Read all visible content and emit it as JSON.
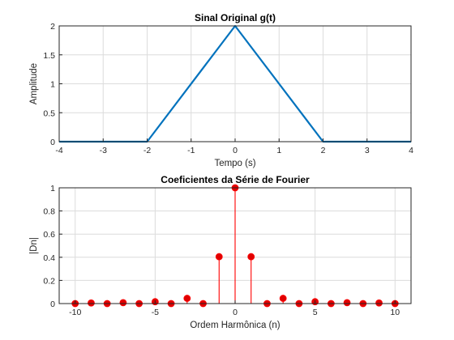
{
  "chart_data": [
    {
      "type": "line",
      "title": "Sinal Original g(t)",
      "xlabel": "Tempo (s)",
      "ylabel": "Amplitude",
      "xlim": [
        -4,
        4
      ],
      "ylim": [
        0,
        2
      ],
      "xticks": [
        -4,
        -3,
        -2,
        -1,
        0,
        1,
        2,
        3,
        4
      ],
      "yticks": [
        0,
        0.5,
        1,
        1.5,
        2
      ],
      "xtick_labels": [
        "-4",
        "-3",
        "-2",
        "-1",
        "0",
        "1",
        "2",
        "3",
        "4"
      ],
      "ytick_labels": [
        "0",
        "0.5",
        "1",
        "1.5",
        "2"
      ],
      "grid": true,
      "color": "#0072BD",
      "series": [
        {
          "x": [
            -4,
            -2,
            0,
            2,
            4
          ],
          "y": [
            0,
            0,
            2,
            0,
            0
          ]
        }
      ]
    },
    {
      "type": "stem",
      "title": "Coeficientes da Série de Fourier",
      "xlabel": "Ordem Harmônica (n)",
      "ylabel": "|Dn|",
      "xlim": [
        -11,
        11
      ],
      "ylim": [
        0,
        1
      ],
      "xticks": [
        -10,
        -5,
        0,
        5,
        10
      ],
      "yticks": [
        0,
        0.2,
        0.4,
        0.6,
        0.8,
        1
      ],
      "xtick_labels": [
        "-10",
        "-5",
        "0",
        "5",
        "10"
      ],
      "ytick_labels": [
        "0",
        "0.2",
        "0.4",
        "0.6",
        "0.8",
        "1"
      ],
      "grid": true,
      "color": "#FF0000",
      "marker_color": "#E00000",
      "series": [
        {
          "x": [
            -10,
            -9,
            -8,
            -7,
            -6,
            -5,
            -4,
            -3,
            -2,
            -1,
            0,
            1,
            2,
            3,
            4,
            5,
            6,
            7,
            8,
            9,
            10
          ],
          "y": [
            0,
            0.005,
            0,
            0.008,
            0,
            0.016,
            0,
            0.045,
            0,
            0.405,
            1,
            0.405,
            0,
            0.045,
            0,
            0.016,
            0,
            0.008,
            0,
            0.005,
            0
          ]
        }
      ]
    }
  ]
}
